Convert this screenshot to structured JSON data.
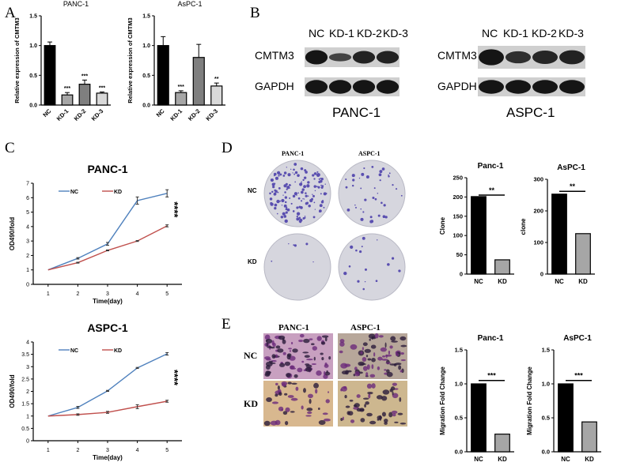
{
  "panel_labels": [
    "A",
    "B",
    "C",
    "D",
    "E"
  ],
  "blots": {
    "lanes": [
      "NC",
      "KD-1",
      "KD-2",
      "KD-3"
    ],
    "rows": [
      "CMTM3",
      "GAPDH"
    ],
    "cells": [
      "PANC-1",
      "ASPC-1"
    ]
  },
  "colony": {
    "columns": [
      "PANC-1",
      "ASPC-1"
    ],
    "rows": [
      "NC",
      "KD"
    ]
  },
  "transwell": {
    "columns": [
      "PANC-1",
      "ASPC-1"
    ],
    "rows": [
      "NC",
      "KD"
    ]
  },
  "chart_data": [
    {
      "id": "A1",
      "type": "bar",
      "title": "PANC-1",
      "ylabel": "Relative expression of CMTM3",
      "categories": [
        "NC",
        "KD-1",
        "KD-2",
        "KD-3"
      ],
      "values": [
        1.0,
        0.17,
        0.35,
        0.2
      ],
      "errors": [
        0.06,
        0.04,
        0.07,
        0.02
      ],
      "significance": [
        "",
        "***",
        "***",
        "***"
      ],
      "colors": [
        "#000000",
        "#a6a6a6",
        "#7f7f7f",
        "#d9d9d9"
      ],
      "ylim": [
        0,
        1.5
      ],
      "yticks": [
        "0.0",
        "0.5",
        "1.0",
        "1.5"
      ]
    },
    {
      "id": "A2",
      "type": "bar",
      "title": "AsPC-1",
      "ylabel": "Relative expression of CMTM3",
      "categories": [
        "NC",
        "KD-1",
        "KD-2",
        "KD-3"
      ],
      "values": [
        1.0,
        0.21,
        0.8,
        0.32
      ],
      "errors": [
        0.15,
        0.03,
        0.22,
        0.05
      ],
      "significance": [
        "",
        "***",
        "",
        "**"
      ],
      "colors": [
        "#000000",
        "#a6a6a6",
        "#7f7f7f",
        "#d9d9d9"
      ],
      "ylim": [
        0,
        1.5
      ],
      "yticks": [
        "0.0",
        "0.5",
        "1.0",
        "1.5"
      ]
    },
    {
      "id": "C1",
      "type": "line",
      "title": "PANC-1",
      "xlabel": "Time(day)",
      "ylabel": "OD490/fold",
      "x": [
        1,
        2,
        3,
        4,
        5
      ],
      "ylim": [
        0,
        7
      ],
      "yticks": [
        "0",
        "1",
        "2",
        "3",
        "4",
        "5",
        "6",
        "7"
      ],
      "annotation": "****",
      "legend": "top-left",
      "series": [
        {
          "name": "NC",
          "color": "#4f81bd",
          "values": [
            1.0,
            1.8,
            2.8,
            5.8,
            6.3
          ],
          "errors": [
            0,
            0.05,
            0.1,
            0.25,
            0.25
          ]
        },
        {
          "name": "KD",
          "color": "#c0504d",
          "values": [
            1.0,
            1.5,
            2.35,
            3.0,
            4.05
          ],
          "errors": [
            0,
            0.03,
            0.03,
            0.03,
            0.07
          ]
        }
      ]
    },
    {
      "id": "C2",
      "type": "line",
      "title": "ASPC-1",
      "xlabel": "Time(day)",
      "ylabel": "OD490/fold",
      "x": [
        1,
        2,
        3,
        4,
        5
      ],
      "ylim": [
        0,
        4
      ],
      "yticks": [
        "0",
        "0.5",
        "1",
        "1.5",
        "2",
        "2.5",
        "3",
        "3.5",
        "4"
      ],
      "annotation": "****",
      "legend": "top-left",
      "series": [
        {
          "name": "NC",
          "color": "#4f81bd",
          "values": [
            1.0,
            1.35,
            2.02,
            2.95,
            3.52
          ],
          "errors": [
            0,
            0.04,
            0.02,
            0.02,
            0.05
          ]
        },
        {
          "name": "KD",
          "color": "#c0504d",
          "values": [
            1.0,
            1.06,
            1.15,
            1.38,
            1.6
          ],
          "errors": [
            0,
            0.03,
            0.04,
            0.08,
            0.04
          ]
        }
      ]
    },
    {
      "id": "D1",
      "type": "bar",
      "title": "Panc-1",
      "ylabel": "Clone",
      "categories": [
        "NC",
        "KD"
      ],
      "values": [
        201,
        37
      ],
      "errors": [
        0,
        0
      ],
      "colors": [
        "#000000",
        "#a6a6a6"
      ],
      "ylim": [
        0,
        250
      ],
      "yticks": [
        "0",
        "50",
        "100",
        "150",
        "200",
        "250"
      ],
      "bracket": "**",
      "bracket_at": 205
    },
    {
      "id": "D2",
      "type": "bar",
      "title": "AsPC-1",
      "ylabel": "clone",
      "categories": [
        "NC",
        "KD"
      ],
      "values": [
        253,
        128
      ],
      "errors": [
        0,
        0
      ],
      "colors": [
        "#000000",
        "#a6a6a6"
      ],
      "ylim": [
        0,
        300
      ],
      "yticks": [
        "0",
        "100",
        "200",
        "300"
      ],
      "bracket": "**",
      "bracket_at": 262
    },
    {
      "id": "E1",
      "type": "bar",
      "title": "Panc-1",
      "ylabel": "Migration Fold Change",
      "categories": [
        "NC",
        "KD"
      ],
      "values": [
        1.0,
        0.26
      ],
      "errors": [
        0,
        0
      ],
      "colors": [
        "#000000",
        "#a6a6a6"
      ],
      "ylim": [
        0,
        1.5
      ],
      "yticks": [
        "0.0",
        "0.5",
        "1.0",
        "1.5"
      ],
      "bracket": "***",
      "bracket_at": 1.05
    },
    {
      "id": "E2",
      "type": "bar",
      "title": "AsPC-1",
      "ylabel": "Migration Fold Change",
      "categories": [
        "NC",
        "KD"
      ],
      "values": [
        1.0,
        0.44
      ],
      "errors": [
        0,
        0
      ],
      "colors": [
        "#000000",
        "#a6a6a6"
      ],
      "ylim": [
        0,
        1.5
      ],
      "yticks": [
        "0.0",
        "0.5",
        "1.0",
        "1.5"
      ],
      "bracket": "***",
      "bracket_at": 1.05
    }
  ]
}
